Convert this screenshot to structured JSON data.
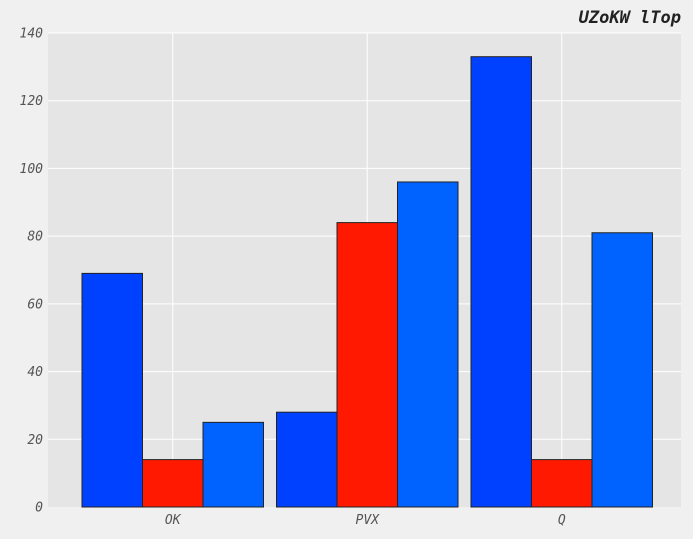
{
  "chart_data": {
    "type": "bar",
    "title": "UZoKW lTop",
    "xlabel": "",
    "ylabel": "",
    "categories": [
      "OK",
      "PVX",
      "Q"
    ],
    "series": [
      {
        "values": [
          69,
          28,
          133
        ],
        "color": "#0041ff"
      },
      {
        "values": [
          14,
          84,
          14
        ],
        "color": "#ff1900"
      },
      {
        "values": [
          25,
          96,
          81
        ],
        "color": "#0062ff"
      }
    ],
    "ylim": [
      0,
      140
    ],
    "yticks": [
      "0",
      "20",
      "40",
      "60",
      "80",
      "100",
      "120",
      "140"
    ],
    "grid": true,
    "background_color": "#e5e5e5",
    "figure_color": "#f0f0f0"
  }
}
